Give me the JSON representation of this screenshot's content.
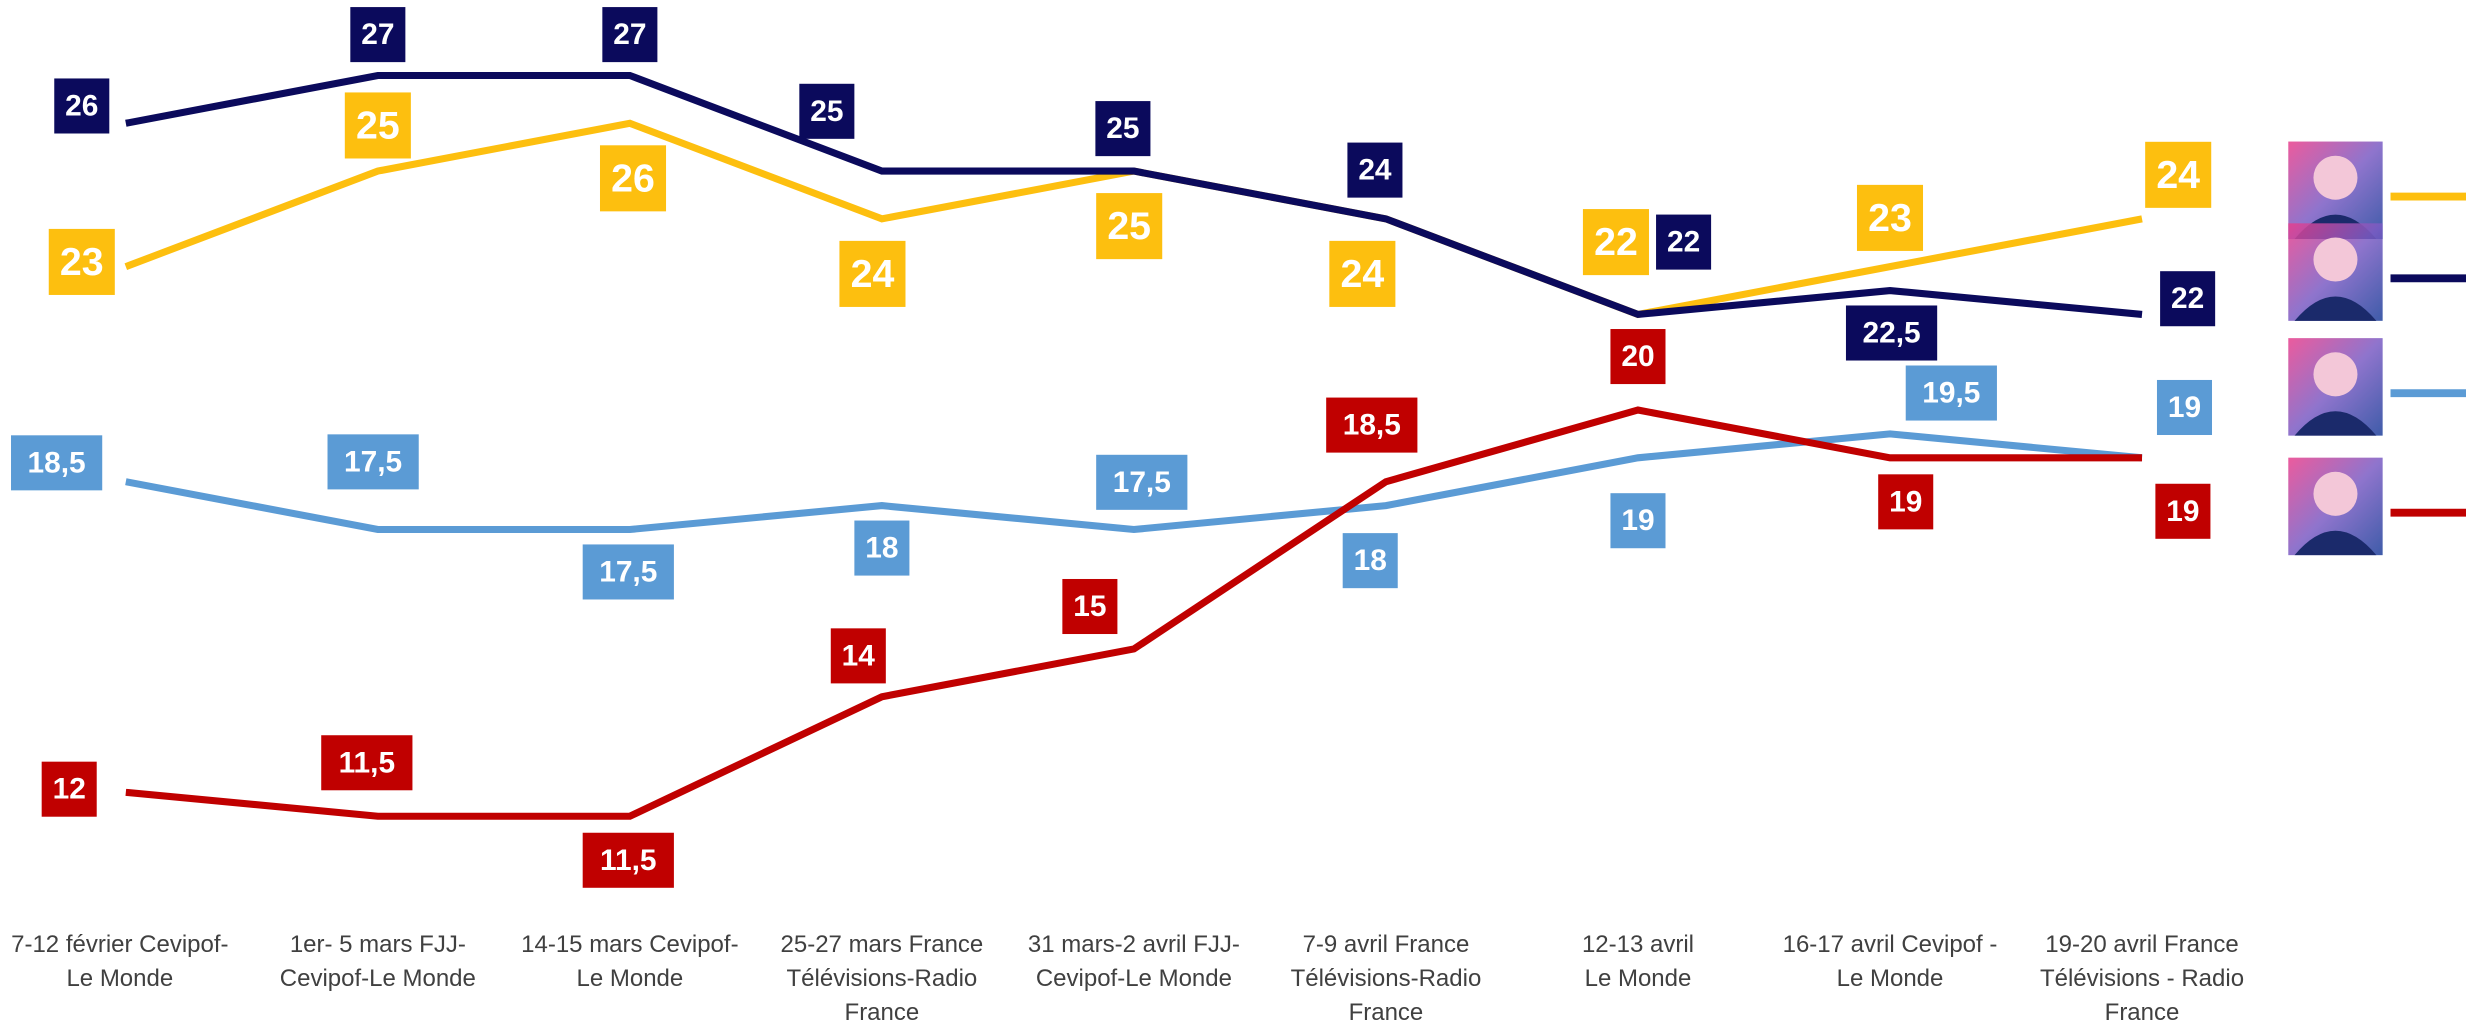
{
  "chart_data": {
    "type": "line",
    "categories": [
      "7-12 février Cevipof-\nLe Monde",
      "1er- 5 mars FJJ-\nCevipof-Le Monde",
      "14-15 mars Cevipof-\nLe Monde",
      "25-27 mars France\nTélévisions-Radio\nFrance",
      "31 mars-2 avril FJJ-\nCevipof-Le Monde",
      "7-9 avril France\nTélévisions-Radio\nFrance",
      "12-13 avril\nLe Monde",
      "16-17 avril Cevipof -\nLe Monde",
      "19-20 avril France\nTélévisions - Radio\nFrance"
    ],
    "series": [
      {
        "color": "#fdbf0f",
        "values": [
          23,
          25,
          26,
          24,
          25,
          24,
          22,
          23,
          24
        ],
        "value_labels": [
          "23",
          "25",
          "26",
          "24",
          "25",
          "24",
          "22",
          "23",
          "24"
        ]
      },
      {
        "color": "#0b0a5c",
        "values": [
          26,
          27,
          27,
          25,
          25,
          24,
          22,
          22.5,
          22
        ],
        "value_labels": [
          "26",
          "27",
          "27",
          "25",
          "25",
          "24",
          "22",
          "22,5",
          "22"
        ]
      },
      {
        "color": "#5b9bd5",
        "values": [
          18.5,
          17.5,
          17.5,
          18,
          17.5,
          18,
          19,
          19.5,
          19
        ],
        "value_labels": [
          "18,5",
          "17,5",
          "17,5",
          "18",
          "17,5",
          "18",
          "19",
          "19,5",
          "19"
        ]
      },
      {
        "color": "#c00000",
        "values": [
          12,
          11.5,
          11.5,
          14,
          15,
          18.5,
          20,
          19,
          19
        ],
        "value_labels": [
          "12",
          "11,5",
          "11,5",
          "14",
          "15",
          "18,5",
          "20",
          "19",
          "19"
        ]
      }
    ]
  }
}
